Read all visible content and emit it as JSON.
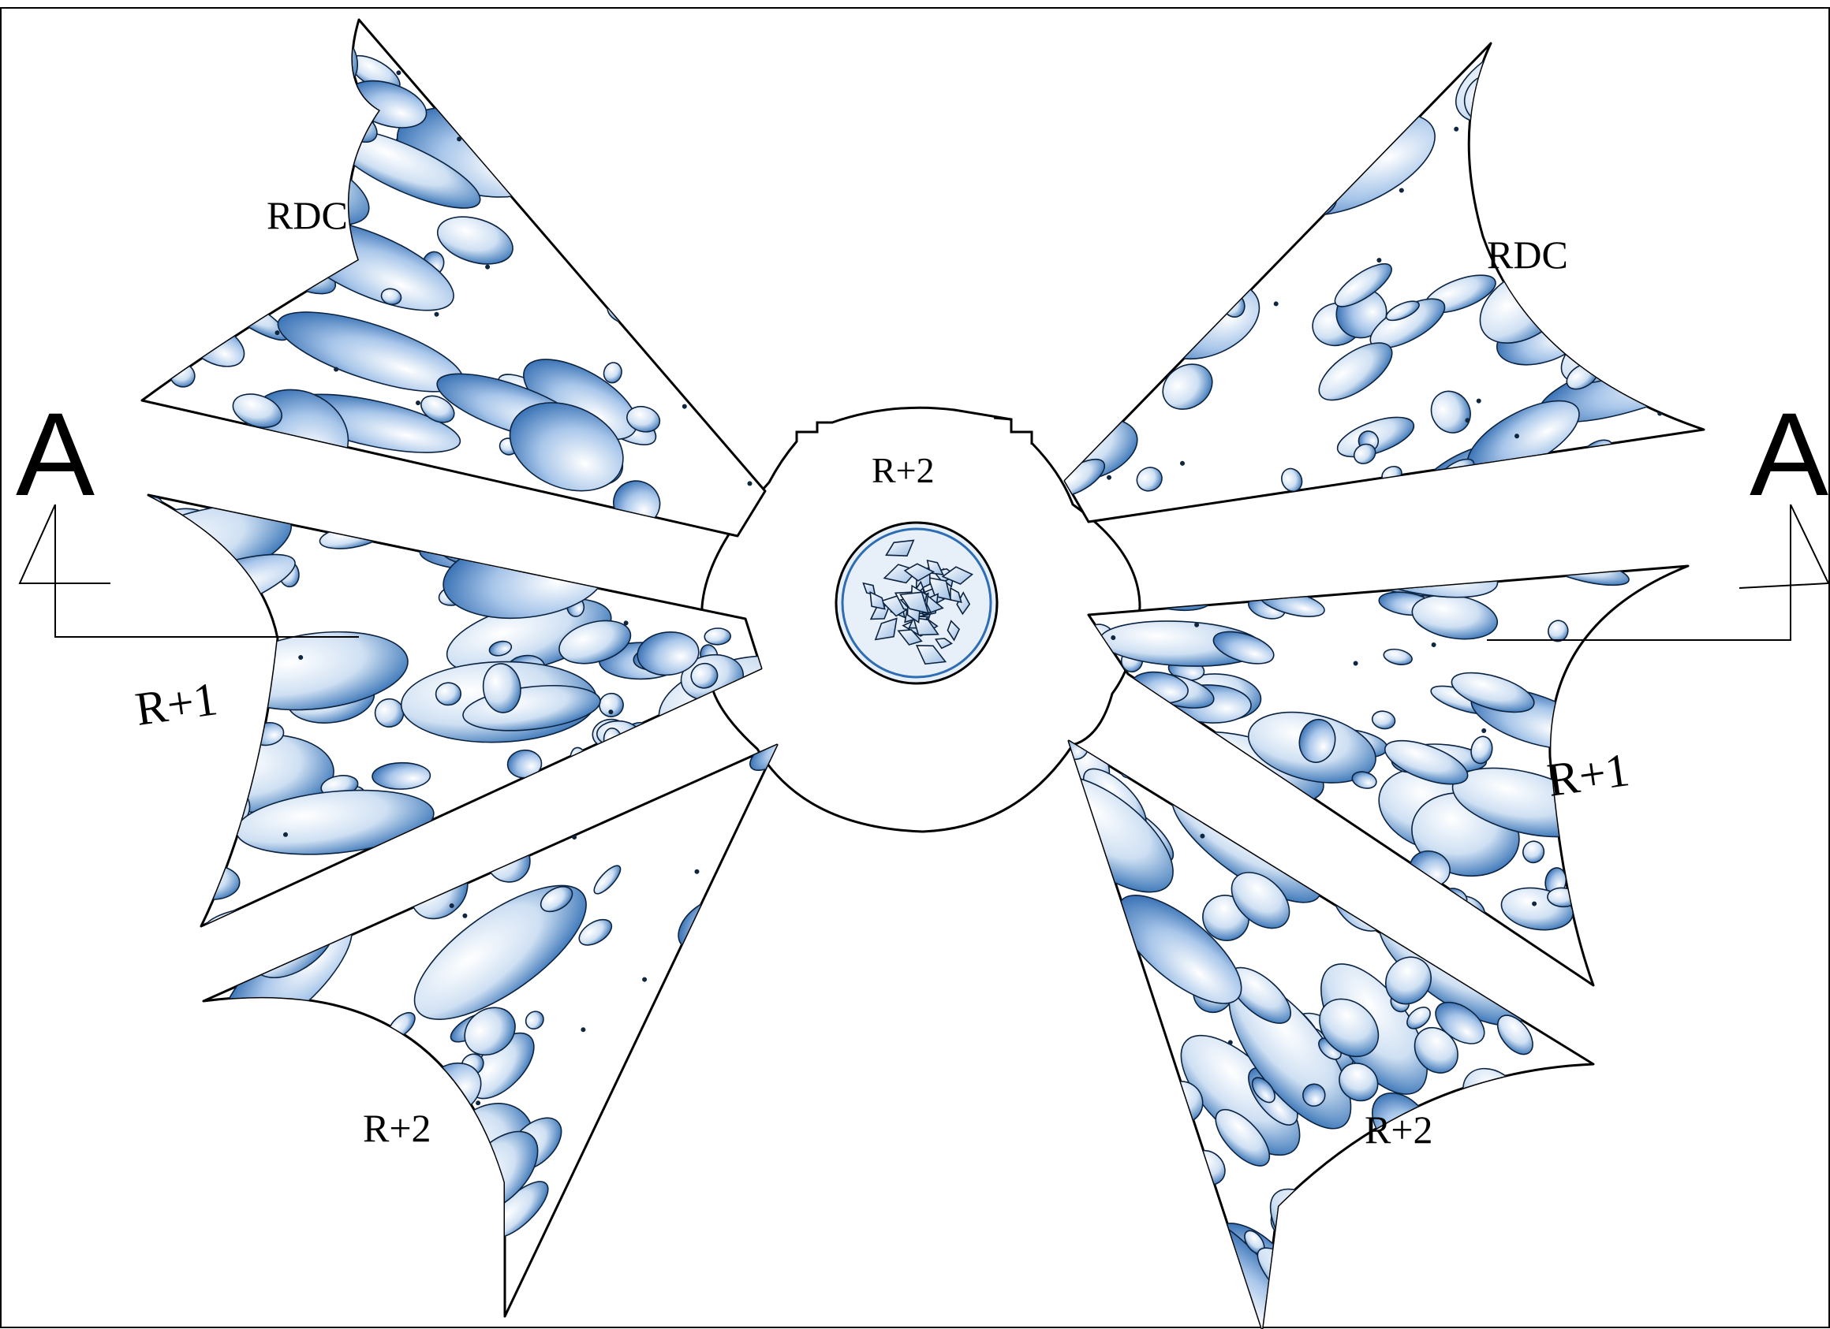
{
  "plan": {
    "section_marker_left": "A",
    "section_marker_right": "A",
    "center_label": "R+2",
    "wings": [
      {
        "id": "left-top",
        "label": "RDC"
      },
      {
        "id": "left-middle",
        "label": "R+1"
      },
      {
        "id": "left-bottom",
        "label": "R+2"
      },
      {
        "id": "right-top",
        "label": "RDC"
      },
      {
        "id": "right-middle",
        "label": "R+1"
      },
      {
        "id": "right-bottom",
        "label": "R+2"
      }
    ]
  },
  "colors": {
    "blue_dark": "#2e6db3",
    "blue_light": "#eaf2fb",
    "outline": "#000000"
  }
}
